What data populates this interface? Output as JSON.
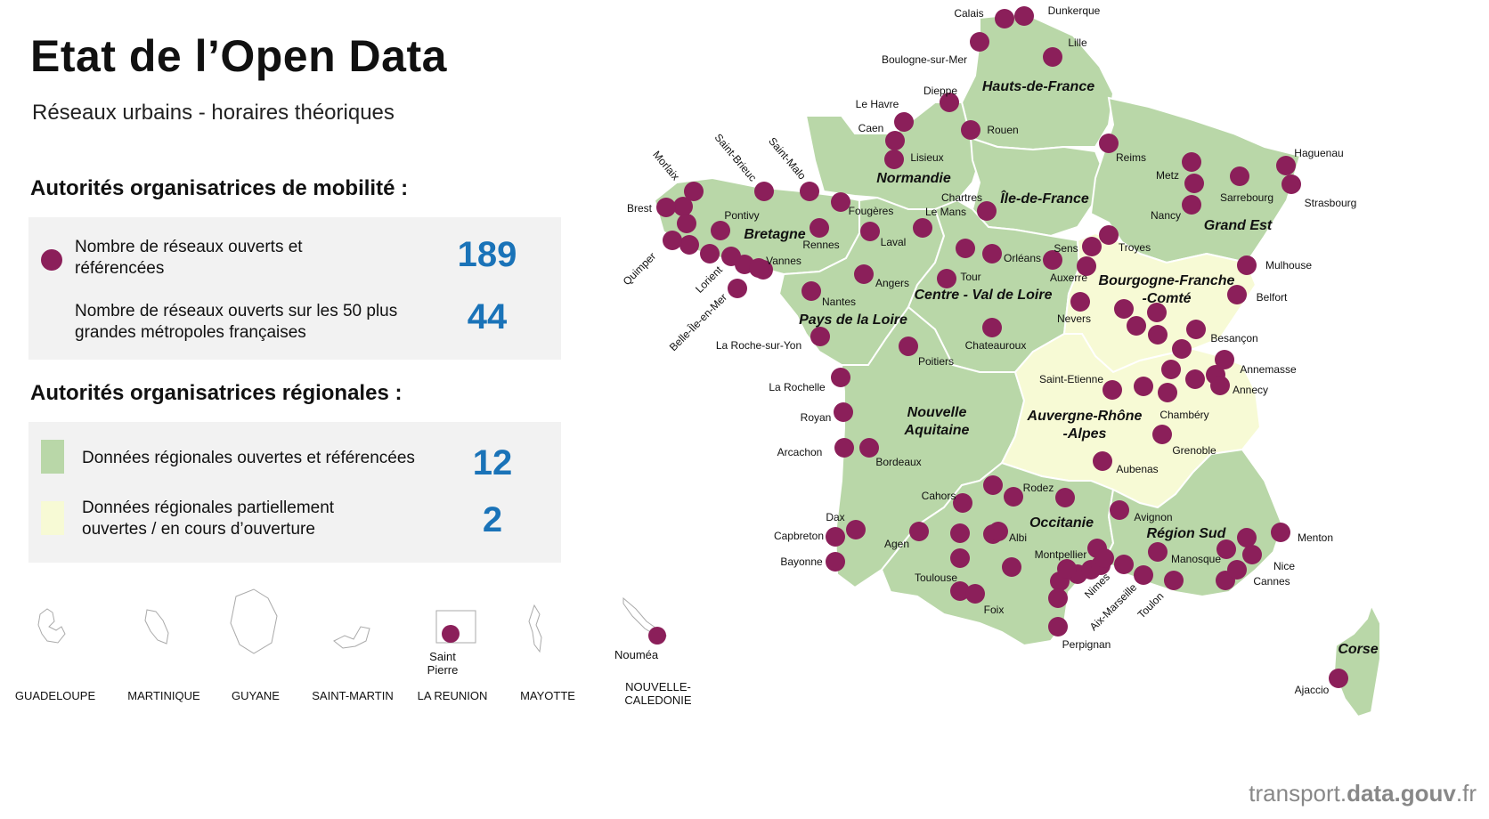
{
  "title": "Etat de l’Open Data",
  "subtitle": "Réseaux urbains - horaires théoriques",
  "section_mobility": "Autorités organisatrices de mobilité :",
  "section_regional": "Autorités organisatrices régionales :",
  "legend": {
    "open_networks_label": "Nombre de réseaux ouverts et référencées",
    "open_networks_count": "189",
    "metro_label": "Nombre de réseaux ouverts sur les 50 plus grandes métropoles françaises",
    "metro_count": "44",
    "regional_open_label": "Données régionales ouvertes et référencées",
    "regional_open_count": "12",
    "regional_partial_label": "Données régionales partiellement ouvertes / en cours d’ouverture",
    "regional_partial_count": "2"
  },
  "colors": {
    "dot": "#8b1f5a",
    "region_open": "#b9d7a8",
    "region_partial": "#f7fad5",
    "number": "#1a73b8"
  },
  "regions": [
    {
      "name": "Hauts-de-France",
      "status": "open"
    },
    {
      "name": "Normandie",
      "status": "open"
    },
    {
      "name": "Île-de-France",
      "status": "open"
    },
    {
      "name": "Grand Est",
      "status": "open"
    },
    {
      "name": "Bretagne",
      "status": "open"
    },
    {
      "name": "Pays de la Loire",
      "status": "open"
    },
    {
      "name": "Centre - Val de Loire",
      "status": "open"
    },
    {
      "name": "Bourgogne-Franche-Comté",
      "status": "partial"
    },
    {
      "name": "Nouvelle Aquitaine",
      "status": "open"
    },
    {
      "name": "Auvergne-Rhône-Alpes",
      "status": "partial"
    },
    {
      "name": "Occitanie",
      "status": "open"
    },
    {
      "name": "Région Sud",
      "status": "open"
    },
    {
      "name": "Corse",
      "status": "open"
    }
  ],
  "cities": [
    "Calais",
    "Dunkerque",
    "Lille",
    "Boulogne-sur-Mer",
    "Dieppe",
    "Le Havre",
    "Rouen",
    "Caen",
    "Lisieux",
    "Morlaix",
    "Saint-Brieuc",
    "Saint-Malo",
    "Brest",
    "Pontivy",
    "Fougères",
    "Chartres",
    "Le Mans",
    "Reims",
    "Metz",
    "Haguenau",
    "Sarrebourg",
    "Strasbourg",
    "Nancy",
    "Quimper",
    "Lorient",
    "Rennes",
    "Laval",
    "Vannes",
    "Sens",
    "Troyes",
    "Orléans",
    "Auxerre",
    "Mulhouse",
    "Belfort",
    "Angers",
    "Tour",
    "Nantes",
    "Belle-Île-en-Mer",
    "Nevers",
    "La Roche-sur-Yon",
    "Chateauroux",
    "Besançon",
    "Poitiers",
    "Annemasse",
    "La Rochelle",
    "Saint-Etienne",
    "Annecy",
    "Royan",
    "Chambéry",
    "Arcachon",
    "Bordeaux",
    "Grenoble",
    "Aubenas",
    "Cahors",
    "Rodez",
    "Dax",
    "Avignon",
    "Capbreton",
    "Agen",
    "Albi",
    "Menton",
    "Montpellier",
    "Manosque",
    "Bayonne",
    "Toulouse",
    "Nice",
    "Cannes",
    "Nimes",
    "Foix",
    "Aix-Marseille",
    "Toulon",
    "Perpignan",
    "Ajaccio"
  ],
  "overseas": [
    {
      "name": "GUADELOUPE"
    },
    {
      "name": "MARTINIQUE"
    },
    {
      "name": "GUYANE"
    },
    {
      "name": "SAINT-MARTIN"
    },
    {
      "name": "LA REUNION",
      "city": "Saint Pierre"
    },
    {
      "name": "MAYOTTE"
    },
    {
      "name": "NOUVELLE-CALEDONIE",
      "city": "Nouméa"
    }
  ],
  "footer": {
    "prefix": "transport.",
    "bold": "data.gouv",
    "suffix": ".fr"
  }
}
